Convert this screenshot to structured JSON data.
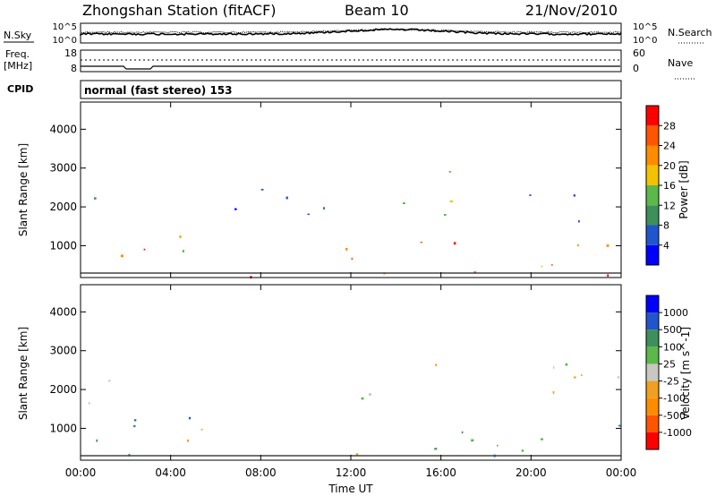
{
  "header": {
    "station": "Zhongshan Station (fitACF)",
    "beam": "Beam 10",
    "date": "21/Nov/2010"
  },
  "strips": {
    "nsky_label": "N.Sky",
    "nsearch_label": "N.Search",
    "freq_label_1": "Freq.",
    "freq_label_2": "[MHz]",
    "nave_label": "Nave",
    "cpid_label": "CPID",
    "cpid_value": "normal (fast stereo) 153",
    "noise_ticks": [
      "10^5",
      "10^0"
    ],
    "freq_ticks": [
      "18",
      "8"
    ],
    "nave_ticks": [
      "60",
      "0"
    ]
  },
  "chart_data": [
    {
      "type": "heatmap",
      "name": "power-panel",
      "ylabel": "Slant Range [km]",
      "yticks": [
        "4000",
        "3000",
        "2000",
        "1000"
      ],
      "ylim": [
        180,
        4700
      ],
      "colorbar_label": "Power [dB]",
      "colorbar_ticks": [
        "28",
        "24",
        "20",
        "16",
        "12",
        "8",
        "4"
      ],
      "colorbar_colors": [
        "#0000ff",
        "#2255cc",
        "#3e8f5a",
        "#5cb84a",
        "#f2c200",
        "#ff8c00",
        "#ff5500",
        "#ff0000"
      ],
      "scatter_regions": [
        {
          "t": [
            0.2,
            1.5
          ],
          "r": [
            1300,
            2800
          ],
          "level": 1
        },
        {
          "t": [
            0.5,
            6.0
          ],
          "r": [
            600,
            1400
          ],
          "level": 4
        },
        {
          "t": [
            1.8,
            4.2
          ],
          "r": [
            750,
            1150
          ],
          "level": 6
        },
        {
          "t": [
            6.5,
            9.5
          ],
          "r": [
            1200,
            2500
          ],
          "level": 1
        },
        {
          "t": [
            10.0,
            13.0
          ],
          "r": [
            1500,
            2800
          ],
          "level": 2
        },
        {
          "t": [
            11.0,
            14.5
          ],
          "r": [
            300,
            1100
          ],
          "level": 5
        },
        {
          "t": [
            14.0,
            17.5
          ],
          "r": [
            1800,
            3100
          ],
          "level": 3
        },
        {
          "t": [
            14.5,
            17.0
          ],
          "r": [
            300,
            1300
          ],
          "level": 6
        },
        {
          "t": [
            18.0,
            24.0
          ],
          "r": [
            1500,
            2700
          ],
          "level": 1
        },
        {
          "t": [
            18.5,
            23.5
          ],
          "r": [
            400,
            1300
          ],
          "level": 5
        },
        {
          "t": [
            0.0,
            24.0
          ],
          "r": [
            200,
            450
          ],
          "level": 7
        }
      ]
    },
    {
      "type": "heatmap",
      "name": "velocity-panel",
      "ylabel": "Slant Range [km]",
      "yticks": [
        "4000",
        "3000",
        "2000",
        "1000"
      ],
      "ylim": [
        180,
        4700
      ],
      "xlabel": "Time UT",
      "xticks": [
        "00:00",
        "04:00",
        "08:00",
        "12:00",
        "16:00",
        "20:00",
        "00:00"
      ],
      "colorbar_label": "Velocity [m s^-1]",
      "colorbar_ticks": [
        "1000",
        "500",
        "100",
        "25",
        "-25",
        "-100",
        "-500",
        "-1000"
      ],
      "colorbar_colors": [
        "#ff0000",
        "#ff5500",
        "#ff8c00",
        "#f0a020",
        "#c8c8c0",
        "#5cb84a",
        "#3e8f5a",
        "#2255cc",
        "#0000ff"
      ],
      "scatter_regions": [
        {
          "t": [
            0.3,
            1.8
          ],
          "r": [
            1500,
            2800
          ],
          "level": 4
        },
        {
          "t": [
            0.5,
            6.5
          ],
          "r": [
            300,
            1300
          ],
          "level": 6
        },
        {
          "t": [
            2.5,
            5.5
          ],
          "r": [
            700,
            1250
          ],
          "level": 2
        },
        {
          "t": [
            10.0,
            13.5
          ],
          "r": [
            1500,
            3000
          ],
          "level": 4
        },
        {
          "t": [
            10.5,
            14.0
          ],
          "r": [
            300,
            1200
          ],
          "level": 2
        },
        {
          "t": [
            14.5,
            17.0
          ],
          "r": [
            1900,
            3100
          ],
          "level": 2
        },
        {
          "t": [
            15.0,
            18.0
          ],
          "r": [
            300,
            1300
          ],
          "level": 6
        },
        {
          "t": [
            18.0,
            24.0
          ],
          "r": [
            1600,
            2700
          ],
          "level": 4
        },
        {
          "t": [
            18.0,
            24.0
          ],
          "r": [
            300,
            1300
          ],
          "level": 6
        },
        {
          "t": [
            20.0,
            21.5
          ],
          "r": [
            400,
            1300
          ],
          "level": 8
        }
      ]
    }
  ]
}
